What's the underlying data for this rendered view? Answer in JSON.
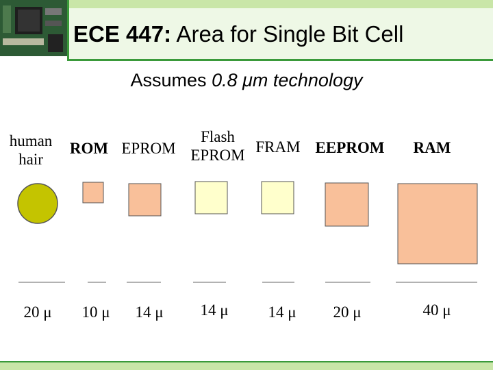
{
  "header": {
    "title_bold": "ECE 447:",
    "title": "Area for Single Bit Cell"
  },
  "subtitle": {
    "text": "Assumes",
    "emphasis": "0.8 μm technology"
  },
  "cells": [
    {
      "label": [
        "human",
        "hair"
      ],
      "size": "20 μ"
    },
    {
      "label": [
        "ROM"
      ],
      "size": "10 μ"
    },
    {
      "label": [
        "EPROM"
      ],
      "size": "14 μ"
    },
    {
      "label": [
        "Flash",
        "EPROM"
      ],
      "size": "14 μ"
    },
    {
      "label": [
        "FRAM"
      ],
      "size": "14 μ"
    },
    {
      "label": [
        "EEPROM"
      ],
      "size": "20 μ"
    },
    {
      "label": [
        "RAM"
      ],
      "size": "40 μ"
    }
  ]
}
